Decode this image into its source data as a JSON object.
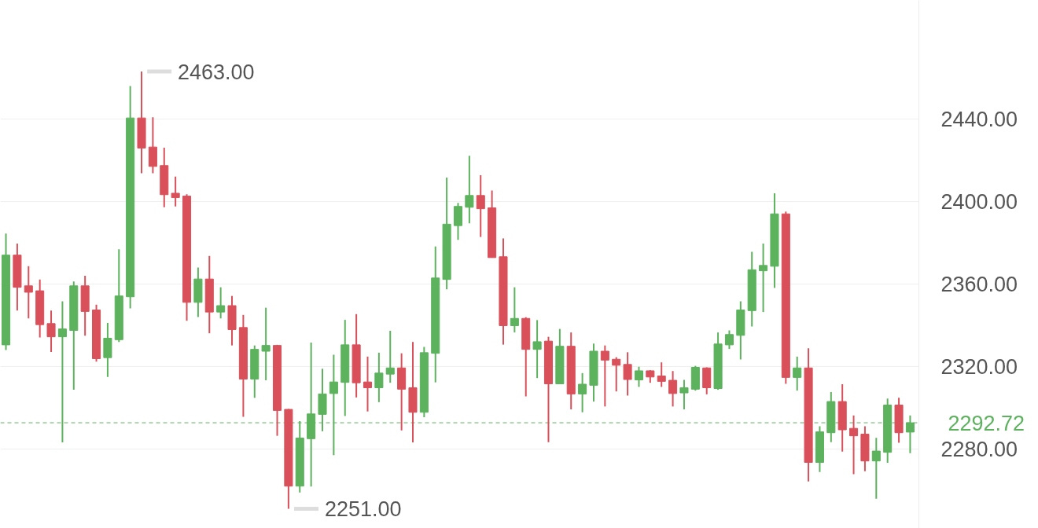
{
  "chart_data": {
    "type": "candlestick",
    "categories": [
      null,
      null,
      null,
      null,
      null,
      null,
      null,
      null,
      null,
      null,
      null,
      null,
      null,
      null,
      null,
      null,
      null,
      null,
      null,
      null,
      null,
      null,
      null,
      null,
      null,
      null,
      null,
      null,
      null,
      null,
      null,
      null,
      null,
      null,
      null,
      null,
      null,
      null,
      null,
      null,
      null,
      null,
      null,
      null,
      null,
      null,
      null,
      null,
      null,
      null,
      null,
      null,
      null,
      null,
      null,
      null,
      null,
      null,
      null,
      null,
      null,
      null,
      null,
      null,
      null,
      null,
      null,
      null,
      null,
      null,
      null,
      null,
      null,
      null,
      null,
      null,
      null,
      null,
      null,
      null,
      null
    ],
    "ohlc": [
      [
        2330.5,
        2384.5,
        2328,
        2374
      ],
      [
        2374,
        2379.6,
        2347.1,
        2358.4
      ],
      [
        2359.1,
        2368.6,
        2343.3,
        2356
      ],
      [
        2356.7,
        2362.2,
        2334.1,
        2340.3
      ],
      [
        2340.8,
        2347.1,
        2327,
        2334.4
      ],
      [
        2334.4,
        2351.6,
        2283.2,
        2338.2
      ],
      [
        2337.5,
        2361.2,
        2308.7,
        2359.1
      ],
      [
        2359.1,
        2364,
        2334.9,
        2346.7
      ],
      [
        2347.4,
        2350,
        2322.4,
        2323.8
      ],
      [
        2324.3,
        2341.1,
        2314.9,
        2333.7
      ],
      [
        2333,
        2376.8,
        2331.9,
        2354.2
      ],
      [
        2353.8,
        2456,
        2348.2,
        2440.5
      ],
      [
        2440.5,
        2463,
        2413.7,
        2425.9
      ],
      [
        2426.4,
        2440.8,
        2413.7,
        2417
      ],
      [
        2417.4,
        2426.1,
        2397.2,
        2403.3
      ],
      [
        2404,
        2412.1,
        2397.6,
        2401.9
      ],
      [
        2402.6,
        2403.5,
        2342.2,
        2351.1
      ],
      [
        2351.1,
        2368,
        2344,
        2362.4
      ],
      [
        2362.4,
        2373.6,
        2336.1,
        2346.4
      ],
      [
        2346.4,
        2358.4,
        2343.3,
        2349.5
      ],
      [
        2349.5,
        2354.2,
        2330.2,
        2337.9
      ],
      [
        2338.9,
        2345,
        2295.6,
        2313.9
      ],
      [
        2313.9,
        2330.2,
        2304.8,
        2328.3
      ],
      [
        2327.4,
        2348.5,
        2313.3,
        2330.2
      ],
      [
        2330.2,
        2330.5,
        2286.4,
        2298.7
      ],
      [
        2299.2,
        2299.4,
        2251,
        2262
      ],
      [
        2262,
        2293.5,
        2258.9,
        2285.3
      ],
      [
        2285,
        2331.6,
        2261.8,
        2297
      ],
      [
        2296.8,
        2318.9,
        2288.6,
        2306.7
      ],
      [
        2306.9,
        2325.7,
        2277,
        2312.5
      ],
      [
        2312.3,
        2342.6,
        2296,
        2330.5
      ],
      [
        2330.5,
        2345.4,
        2305,
        2312.1
      ],
      [
        2312.5,
        2324.8,
        2298.2,
        2309.7
      ],
      [
        2309.7,
        2326.7,
        2302.7,
        2316.8
      ],
      [
        2316.3,
        2337.3,
        2312.1,
        2319.3
      ],
      [
        2319.3,
        2326.4,
        2289,
        2309
      ],
      [
        2309.7,
        2331.9,
        2283.2,
        2297.8
      ],
      [
        2297.8,
        2329.5,
        2295.4,
        2326.7
      ],
      [
        2326.4,
        2378.2,
        2312.3,
        2362.9
      ],
      [
        2362.2,
        2411.6,
        2357.4,
        2389
      ],
      [
        2388.3,
        2399.3,
        2381.4,
        2397.6
      ],
      [
        2397.2,
        2422.2,
        2389.4,
        2402.9
      ],
      [
        2402.9,
        2412.7,
        2382.8,
        2396.5
      ],
      [
        2396.9,
        2405.3,
        2372.8,
        2372.8
      ],
      [
        2373.2,
        2382.1,
        2330.6,
        2339.8
      ],
      [
        2339.8,
        2358.4,
        2336.5,
        2343.3
      ],
      [
        2343.3,
        2343.9,
        2305.5,
        2328.3
      ],
      [
        2328.3,
        2342.5,
        2314.4,
        2332
      ],
      [
        2332.3,
        2334.4,
        2283.3,
        2311.6
      ],
      [
        2311.6,
        2338.2,
        2311.6,
        2329.8
      ],
      [
        2329.8,
        2336.5,
        2299.2,
        2306.7
      ],
      [
        2306.7,
        2316.8,
        2297.8,
        2311.4
      ],
      [
        2310.9,
        2331.1,
        2303,
        2327.4
      ],
      [
        2327.4,
        2330.2,
        2300.6,
        2323.1
      ],
      [
        2323.5,
        2324.5,
        2307.9,
        2320.6
      ],
      [
        2321,
        2326.9,
        2305.9,
        2313.7
      ],
      [
        2313.5,
        2319.9,
        2310.1,
        2317.9
      ],
      [
        2317.9,
        2318.2,
        2312.1,
        2314.9
      ],
      [
        2315.4,
        2322,
        2310.1,
        2312.8
      ],
      [
        2313.3,
        2317.8,
        2300.6,
        2306.9
      ],
      [
        2307.2,
        2313.5,
        2299.2,
        2309.7
      ],
      [
        2309,
        2320.3,
        2308.3,
        2319.6
      ],
      [
        2319.3,
        2319.6,
        2306.5,
        2309.7
      ],
      [
        2309.3,
        2336.5,
        2308.7,
        2330.9
      ],
      [
        2330.5,
        2337.5,
        2328.5,
        2335.5
      ],
      [
        2335.1,
        2351.6,
        2323.4,
        2347.4
      ],
      [
        2347.1,
        2375.6,
        2339.4,
        2366.9
      ],
      [
        2366.4,
        2379.6,
        2346.4,
        2369
      ],
      [
        2368.6,
        2404,
        2358.1,
        2394
      ],
      [
        2394,
        2395.1,
        2311.6,
        2314.7
      ],
      [
        2314.7,
        2324.8,
        2308.3,
        2319.3
      ],
      [
        2319.3,
        2328.8,
        2264.3,
        2273.5
      ],
      [
        2273.5,
        2291,
        2268.8,
        2288.3
      ],
      [
        2287.9,
        2307.6,
        2283.3,
        2303
      ],
      [
        2303,
        2311.4,
        2278.7,
        2289.3
      ],
      [
        2290,
        2296.3,
        2267.8,
        2286.4
      ],
      [
        2287.2,
        2291,
        2269.2,
        2274.2
      ],
      [
        2274.2,
        2285.4,
        2255.9,
        2279
      ],
      [
        2278.4,
        2304.5,
        2273.3,
        2301.3
      ],
      [
        2301.3,
        2304.8,
        2283,
        2287.9
      ],
      [
        2288.2,
        2296.3,
        2278,
        2292.7
      ]
    ],
    "colors": [
      "#5cb25d",
      "#d9505a",
      "#d9505a",
      "#d9505a",
      "#d9505a",
      "#5cb25d",
      "#5cb25d",
      "#d9505a",
      "#d9505a",
      "#5cb25d",
      "#5cb25d",
      "#5cb25d",
      "#d9505a",
      "#d9505a",
      "#d9505a",
      "#d9505a",
      "#d9505a",
      "#5cb25d",
      "#d9505a",
      "#5cb25d",
      "#d9505a",
      "#d9505a",
      "#5cb25d",
      "#5cb25d",
      "#d9505a",
      "#d9505a",
      "#5cb25d",
      "#5cb25d",
      "#5cb25d",
      "#5cb25d",
      "#5cb25d",
      "#d9505a",
      "#d9505a",
      "#5cb25d",
      "#5cb25d",
      "#d9505a",
      "#d9505a",
      "#5cb25d",
      "#5cb25d",
      "#5cb25d",
      "#5cb25d",
      "#5cb25d",
      "#d9505a",
      "#d9505a",
      "#d9505a",
      "#5cb25d",
      "#d9505a",
      "#5cb25d",
      "#d9505a",
      "#5cb25d",
      "#d9505a",
      "#5cb25d",
      "#5cb25d",
      "#d9505a",
      "#d9505a",
      "#d9505a",
      "#5cb25d",
      "#d9505a",
      "#d9505a",
      "#d9505a",
      "#5cb25d",
      "#5cb25d",
      "#d9505a",
      "#5cb25d",
      "#5cb25d",
      "#5cb25d",
      "#5cb25d",
      "#5cb25d",
      "#5cb25d",
      "#d9505a",
      "#5cb25d",
      "#d9505a",
      "#5cb25d",
      "#5cb25d",
      "#d9505a",
      "#d9505a",
      "#d9505a",
      "#5cb25d",
      "#5cb25d",
      "#d9505a",
      "#5cb25d"
    ],
    "ylim": [
      2241.5,
      2497.5
    ],
    "yticks": [
      {
        "value": 2280,
        "label": "2280.00"
      },
      {
        "value": 2320,
        "label": "2320.00"
      },
      {
        "value": 2360,
        "label": "2360.00"
      },
      {
        "value": 2400,
        "label": "2400.00"
      },
      {
        "value": 2440,
        "label": "2440.00"
      }
    ],
    "grid": "y",
    "tick_labels": "y",
    "ref_lines": [
      {
        "axis": "y",
        "value": 2292.72,
        "label": "2292.72",
        "color": "#5cb25d",
        "line_style": "dashed"
      }
    ],
    "annotations": [
      "2463.00",
      "2251.00"
    ]
  }
}
